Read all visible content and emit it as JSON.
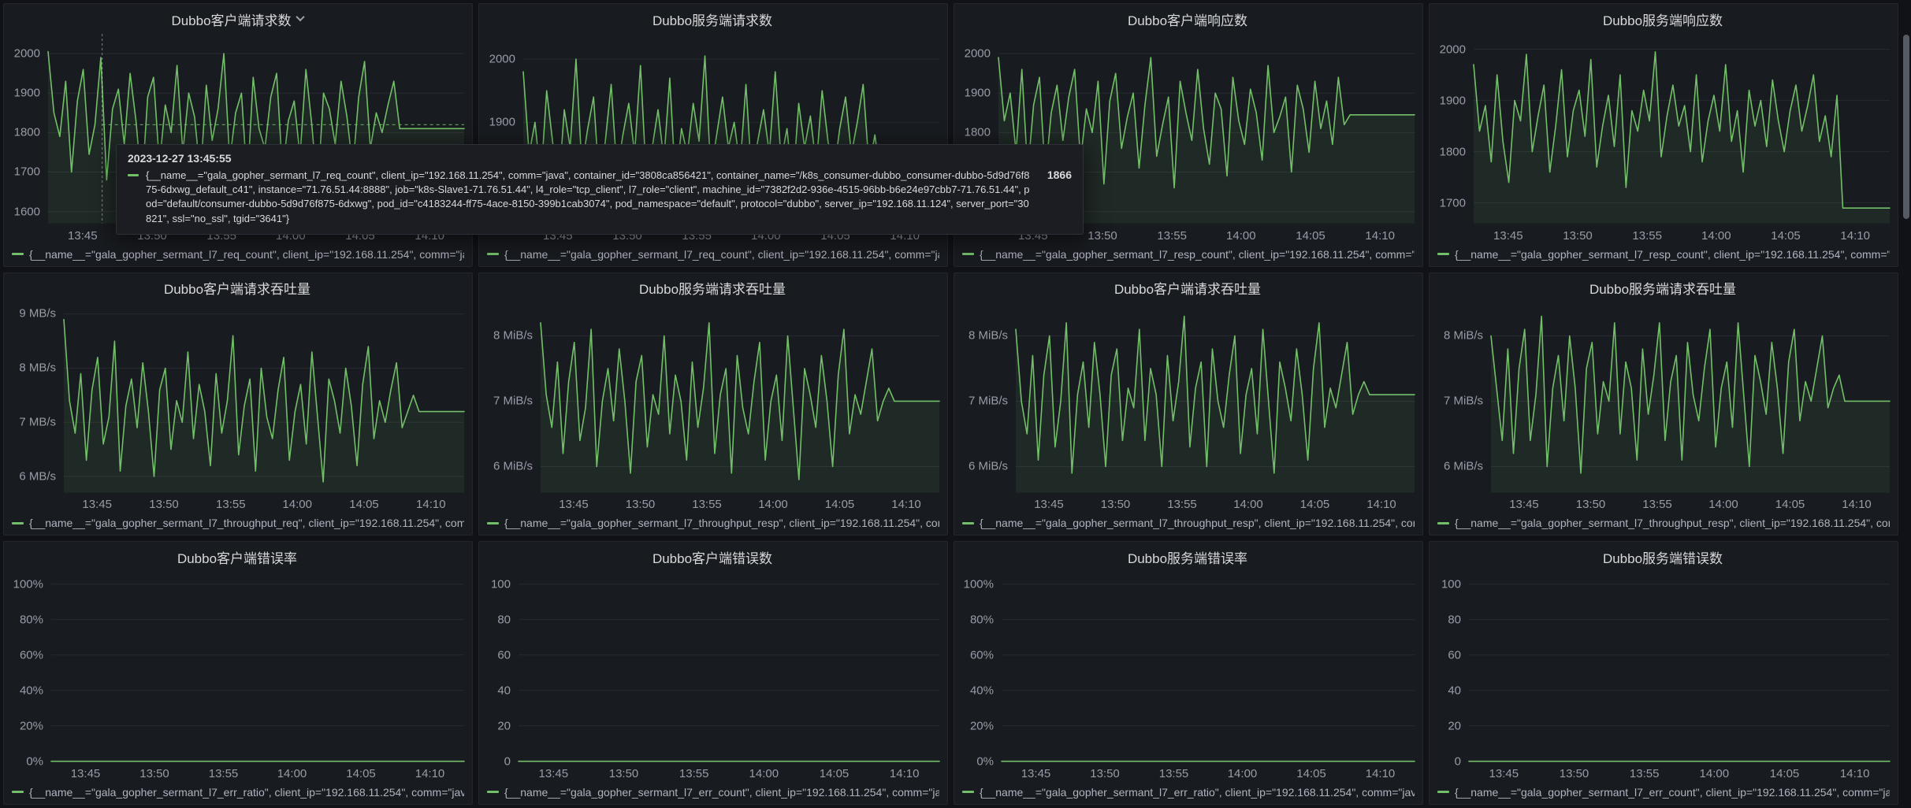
{
  "colors": {
    "series_green": "#73BF69",
    "panel_background": "#181b1f",
    "page_background": "#111217"
  },
  "x_axis": {
    "labels": [
      "13:45",
      "13:50",
      "13:55",
      "14:00",
      "14:05",
      "14:10"
    ],
    "fractions": [
      0.083,
      0.25,
      0.417,
      0.583,
      0.75,
      0.917
    ]
  },
  "tooltip": {
    "time": "2023-12-27 13:45:55",
    "label": "{__name__=\"gala_gopher_sermant_l7_req_count\", client_ip=\"192.168.11.254\", comm=\"java\", container_id=\"3808ca856421\", container_name=\"/k8s_consumer-dubbo_consumer-dubbo-5d9d76f875-6dxwg_default_c41\", instance=\"71.76.51.44:8888\", job=\"k8s-Slave1-71.76.51.44\", l4_role=\"tcp_client\", l7_role=\"client\", machine_id=\"7382f2d2-936e-4515-96bb-b6e24e97cbb7-71.76.51.44\", pod=\"default/consumer-dubbo-5d9d76f875-6dxwg\", pod_id=\"c4183244-ff75-4ace-8150-399b1cab3074\", pod_namespace=\"default\", protocol=\"dubbo\", server_ip=\"192.168.11.124\", server_port=\"30821\", ssl=\"no_ssl\", tgid=\"3641\"}",
    "value": "1866"
  },
  "chart_data": [
    {
      "type": "line",
      "title": "Dubbo客户端请求数",
      "menu_chevron": true,
      "axis_width": 48,
      "y_min": 1570,
      "y_max": 2050,
      "y_ticks": [
        {
          "value": 1600,
          "label": "1600"
        },
        {
          "value": 1700,
          "label": "1700"
        },
        {
          "value": 1800,
          "label": "1800"
        },
        {
          "value": 1900,
          "label": "1900"
        },
        {
          "value": 2000,
          "label": "2000"
        }
      ],
      "legend": "{__name__=\"gala_gopher_sermant_l7_req_count\", client_ip=\"192.168.11.254\", comm=\"java\", containe",
      "crosshair": {
        "x_frac": 0.13,
        "y_value": 1820
      },
      "values": [
        2005,
        1850,
        1790,
        1930,
        1700,
        1880,
        1960,
        1745,
        1820,
        1990,
        1680,
        1860,
        1910,
        1770,
        1950,
        1830,
        1660,
        1890,
        1940,
        1720,
        1870,
        1800,
        1970,
        1750,
        1900,
        1840,
        1690,
        1920,
        1780,
        1860,
        2000,
        1730,
        1850,
        1900,
        1670,
        1940,
        1810,
        1760,
        1890,
        1950,
        1700,
        1830,
        1880,
        1740,
        1960,
        1820,
        1650,
        1900,
        1860,
        1770,
        1930,
        1840,
        1710,
        1890,
        1980,
        1760,
        1850,
        1800,
        1870,
        1930,
        1810,
        1810,
        1810,
        1810,
        1810,
        1810,
        1810,
        1810,
        1810,
        1810,
        1810,
        1810
      ]
    },
    {
      "type": "line",
      "title": "Dubbo服务端请求数",
      "menu_chevron": false,
      "axis_width": 48,
      "y_min": 1740,
      "y_max": 2040,
      "y_ticks": [
        {
          "value": 1800,
          "label": "1800"
        },
        {
          "value": 1900,
          "label": "1900"
        },
        {
          "value": 2000,
          "label": "2000"
        }
      ],
      "legend": "{__name__=\"gala_gopher_sermant_l7_req_count\", client_ip=\"192.168.11.254\", comm=\"java\", containe",
      "values": [
        1980,
        1850,
        1900,
        1810,
        1950,
        1870,
        1790,
        1920,
        1860,
        2000,
        1830,
        1890,
        1940,
        1800,
        1870,
        1960,
        1820,
        1880,
        1930,
        1850,
        1990,
        1810,
        1860,
        1920,
        1840,
        1970,
        1800,
        1890,
        1850,
        1930,
        1870,
        2005,
        1820,
        1880,
        1940,
        1860,
        1900,
        1830,
        1960,
        1810,
        1870,
        1920,
        1850,
        1980,
        1840,
        1890,
        1800,
        1930,
        1860,
        1910,
        1830,
        1950,
        1870,
        1820,
        1890,
        1940,
        1850,
        1900,
        1960,
        1830,
        1880,
        1810,
        1765,
        1765,
        1765,
        1765,
        1765,
        1765,
        1765,
        1765,
        1765,
        1765
      ]
    },
    {
      "type": "line",
      "title": "Dubbo客户端响应数",
      "menu_chevron": false,
      "axis_width": 48,
      "y_min": 1570,
      "y_max": 2050,
      "y_ticks": [
        {
          "value": 1600,
          "label": "1600"
        },
        {
          "value": 1700,
          "label": "1700"
        },
        {
          "value": 1800,
          "label": "1800"
        },
        {
          "value": 1900,
          "label": "1900"
        },
        {
          "value": 2000,
          "label": "2000"
        }
      ],
      "legend": "{__name__=\"gala_gopher_sermant_l7_resp_count\", client_ip=\"192.168.11.254\", comm=\"java\", contain",
      "values": [
        1990,
        1830,
        1900,
        1750,
        1960,
        1700,
        1870,
        1940,
        1690,
        1850,
        1920,
        1780,
        1890,
        1960,
        1730,
        1860,
        1800,
        1930,
        1670,
        1880,
        1950,
        1760,
        1840,
        1900,
        1710,
        1870,
        1990,
        1740,
        1820,
        1890,
        1660,
        1930,
        1850,
        1780,
        1960,
        1810,
        1720,
        1900,
        1860,
        1690,
        1940,
        1830,
        1770,
        1910,
        1850,
        1730,
        1970,
        1800,
        1840,
        1890,
        1700,
        1920,
        1860,
        1750,
        1930,
        1810,
        1880,
        1770,
        1940,
        1820,
        1845,
        1845,
        1845,
        1845,
        1845,
        1845,
        1845,
        1845,
        1845,
        1845,
        1845,
        1845
      ]
    },
    {
      "type": "line",
      "title": "Dubbo服务端响应数",
      "menu_chevron": false,
      "axis_width": 48,
      "y_min": 1660,
      "y_max": 2030,
      "y_ticks": [
        {
          "value": 1700,
          "label": "1700"
        },
        {
          "value": 1800,
          "label": "1800"
        },
        {
          "value": 1900,
          "label": "1900"
        },
        {
          "value": 2000,
          "label": "2000"
        }
      ],
      "legend": "{__name__=\"gala_gopher_sermant_l7_resp_count\", client_ip=\"192.168.11.254\", comm=\"java\", contain",
      "values": [
        1970,
        1840,
        1890,
        1780,
        1950,
        1820,
        1740,
        1900,
        1860,
        1990,
        1800,
        1870,
        1930,
        1760,
        1850,
        1960,
        1790,
        1880,
        1920,
        1830,
        1980,
        1770,
        1850,
        1910,
        1810,
        1950,
        1730,
        1880,
        1840,
        1920,
        1860,
        1995,
        1790,
        1870,
        1930,
        1850,
        1890,
        1800,
        1950,
        1780,
        1860,
        1910,
        1840,
        1970,
        1820,
        1880,
        1760,
        1920,
        1850,
        1900,
        1810,
        1940,
        1860,
        1800,
        1880,
        1930,
        1840,
        1890,
        1950,
        1820,
        1870,
        1790,
        1910,
        1690,
        1690,
        1690,
        1690,
        1690,
        1690,
        1690,
        1690,
        1690
      ]
    },
    {
      "type": "line",
      "title": "Dubbo客户端请求吞吐量",
      "menu_chevron": false,
      "axis_width": 68,
      "y_min": 5.7,
      "y_max": 9.2,
      "y_ticks": [
        {
          "value": 6,
          "label": "6 MB/s"
        },
        {
          "value": 7,
          "label": "7 MB/s"
        },
        {
          "value": 8,
          "label": "8 MB/s"
        },
        {
          "value": 9,
          "label": "9 MB/s"
        }
      ],
      "legend": "{__name__=\"gala_gopher_sermant_l7_throughput_req\", client_ip=\"192.168.11.254\", comm=\"java\", con",
      "values": [
        8.9,
        7.4,
        6.8,
        7.9,
        6.3,
        7.6,
        8.2,
        6.6,
        7.1,
        8.5,
        6.1,
        7.3,
        7.8,
        6.9,
        8.1,
        7.2,
        6.0,
        7.6,
        8.0,
        6.5,
        7.4,
        7.0,
        8.3,
        6.7,
        7.7,
        7.2,
        6.2,
        7.9,
        6.8,
        7.4,
        8.6,
        6.4,
        7.3,
        7.8,
        6.1,
        8.0,
        7.1,
        6.7,
        7.6,
        8.2,
        6.3,
        7.2,
        7.7,
        6.6,
        8.3,
        7.1,
        5.9,
        7.8,
        7.4,
        6.8,
        8.0,
        7.3,
        6.2,
        7.7,
        8.4,
        6.7,
        7.4,
        7.0,
        7.6,
        8.1,
        6.9,
        7.2,
        7.5,
        7.2,
        7.2,
        7.2,
        7.2,
        7.2,
        7.2,
        7.2,
        7.2,
        7.2
      ]
    },
    {
      "type": "line",
      "title": "Dubbo服务端请求吞吐量",
      "menu_chevron": false,
      "axis_width": 70,
      "y_min": 5.6,
      "y_max": 8.5,
      "y_ticks": [
        {
          "value": 6,
          "label": "6 MiB/s"
        },
        {
          "value": 7,
          "label": "7 MiB/s"
        },
        {
          "value": 8,
          "label": "8 MiB/s"
        }
      ],
      "legend": "{__name__=\"gala_gopher_sermant_l7_throughput_resp\", client_ip=\"192.168.11.254\", comm=\"java\", co",
      "values": [
        8.2,
        7.1,
        6.6,
        7.6,
        6.2,
        7.3,
        7.9,
        6.4,
        6.9,
        8.1,
        6.0,
        7.0,
        7.5,
        6.7,
        7.8,
        7.0,
        5.9,
        7.3,
        7.7,
        6.3,
        7.1,
        6.8,
        8.0,
        6.5,
        7.4,
        7.0,
        6.1,
        7.6,
        6.6,
        7.2,
        8.2,
        6.2,
        7.1,
        7.5,
        5.9,
        7.7,
        6.9,
        6.5,
        7.3,
        7.9,
        6.1,
        7.0,
        7.4,
        6.4,
        8.0,
        6.9,
        5.8,
        7.5,
        7.1,
        6.6,
        7.7,
        7.0,
        6.0,
        7.4,
        8.1,
        6.5,
        7.1,
        6.8,
        7.3,
        7.8,
        6.7,
        7.0,
        7.2,
        7.0,
        7.0,
        7.0,
        7.0,
        7.0,
        7.0,
        7.0,
        7.0,
        7.0
      ]
    },
    {
      "type": "line",
      "title": "Dubbo客户端请求吞吐量",
      "menu_chevron": false,
      "axis_width": 70,
      "y_min": 5.6,
      "y_max": 8.5,
      "y_ticks": [
        {
          "value": 6,
          "label": "6 MiB/s"
        },
        {
          "value": 7,
          "label": "7 MiB/s"
        },
        {
          "value": 8,
          "label": "8 MiB/s"
        }
      ],
      "legend": "{__name__=\"gala_gopher_sermant_l7_throughput_resp\", client_ip=\"192.168.11.254\", comm=\"java\", co",
      "values": [
        8.1,
        7.0,
        6.5,
        7.7,
        6.1,
        7.4,
        8.0,
        6.3,
        7.0,
        8.2,
        5.9,
        7.1,
        7.6,
        6.6,
        7.9,
        7.1,
        6.0,
        7.4,
        7.8,
        6.4,
        7.2,
        6.9,
        8.1,
        6.4,
        7.5,
        7.1,
        6.0,
        7.7,
        6.7,
        7.3,
        8.3,
        6.3,
        7.2,
        7.6,
        6.0,
        7.8,
        7.0,
        6.6,
        7.4,
        8.0,
        6.2,
        7.1,
        7.5,
        6.5,
        8.1,
        7.0,
        5.9,
        7.6,
        7.2,
        6.7,
        7.8,
        7.1,
        6.1,
        7.5,
        8.2,
        6.6,
        7.2,
        6.9,
        7.4,
        7.9,
        6.8,
        7.1,
        7.3,
        7.1,
        7.1,
        7.1,
        7.1,
        7.1,
        7.1,
        7.1,
        7.1,
        7.1
      ]
    },
    {
      "type": "line",
      "title": "Dubbo服务端请求吞吐量",
      "menu_chevron": false,
      "axis_width": 70,
      "y_min": 5.6,
      "y_max": 8.5,
      "y_ticks": [
        {
          "value": 6,
          "label": "6 MiB/s"
        },
        {
          "value": 7,
          "label": "7 MiB/s"
        },
        {
          "value": 8,
          "label": "8 MiB/s"
        }
      ],
      "legend": "{__name__=\"gala_gopher_sermant_l7_throughput_resp\", client_ip=\"192.168.11.254\", comm=\"java\", co",
      "values": [
        8.0,
        7.2,
        6.4,
        7.8,
        6.2,
        7.5,
        8.1,
        6.4,
        7.1,
        8.3,
        6.0,
        7.2,
        7.7,
        6.7,
        8.0,
        7.2,
        5.9,
        7.5,
        7.9,
        6.5,
        7.3,
        7.0,
        8.2,
        6.5,
        7.6,
        7.2,
        6.1,
        7.8,
        6.8,
        7.4,
        8.2,
        6.4,
        7.3,
        7.7,
        6.1,
        7.9,
        7.1,
        6.7,
        7.5,
        8.1,
        6.3,
        7.2,
        7.6,
        6.6,
        8.2,
        7.1,
        6.0,
        7.7,
        7.3,
        6.8,
        7.9,
        7.2,
        6.2,
        7.6,
        8.1,
        6.7,
        7.3,
        7.0,
        7.5,
        8.0,
        6.9,
        7.2,
        7.4,
        7.0,
        7.0,
        7.0,
        7.0,
        7.0,
        7.0,
        7.0,
        7.0,
        7.0
      ]
    },
    {
      "type": "line",
      "title": "Dubbo客户端错误率",
      "menu_chevron": false,
      "axis_width": 52,
      "y_min": 0,
      "y_max": 107,
      "y_ticks": [
        {
          "value": 0,
          "label": "0%"
        },
        {
          "value": 20,
          "label": "20%"
        },
        {
          "value": 40,
          "label": "40%"
        },
        {
          "value": 60,
          "label": "60%"
        },
        {
          "value": 80,
          "label": "80%"
        },
        {
          "value": 100,
          "label": "100%"
        }
      ],
      "legend": "{__name__=\"gala_gopher_sermant_l7_err_ratio\", client_ip=\"192.168.11.254\", comm=\"java\", container_",
      "values": [
        0,
        0
      ]
    },
    {
      "type": "line",
      "title": "Dubbo客户端错误数",
      "menu_chevron": false,
      "axis_width": 42,
      "y_min": 0,
      "y_max": 107,
      "y_ticks": [
        {
          "value": 0,
          "label": "0"
        },
        {
          "value": 20,
          "label": "20"
        },
        {
          "value": 40,
          "label": "40"
        },
        {
          "value": 60,
          "label": "60"
        },
        {
          "value": 80,
          "label": "80"
        },
        {
          "value": 100,
          "label": "100"
        }
      ],
      "legend": "{__name__=\"gala_gopher_sermant_l7_err_count\", client_ip=\"192.168.11.254\", comm=\"java\", container",
      "values": [
        0,
        0
      ]
    },
    {
      "type": "line",
      "title": "Dubbo服务端错误率",
      "menu_chevron": false,
      "axis_width": 52,
      "y_min": 0,
      "y_max": 107,
      "y_ticks": [
        {
          "value": 0,
          "label": "0%"
        },
        {
          "value": 20,
          "label": "20%"
        },
        {
          "value": 40,
          "label": "40%"
        },
        {
          "value": 60,
          "label": "60%"
        },
        {
          "value": 80,
          "label": "80%"
        },
        {
          "value": 100,
          "label": "100%"
        }
      ],
      "legend": "{__name__=\"gala_gopher_sermant_l7_err_ratio\", client_ip=\"192.168.11.254\", comm=\"java\", container_",
      "values": [
        0,
        0
      ]
    },
    {
      "type": "line",
      "title": "Dubbo服务端错误数",
      "menu_chevron": false,
      "axis_width": 42,
      "y_min": 0,
      "y_max": 107,
      "y_ticks": [
        {
          "value": 0,
          "label": "0"
        },
        {
          "value": 20,
          "label": "20"
        },
        {
          "value": 40,
          "label": "40"
        },
        {
          "value": 60,
          "label": "60"
        },
        {
          "value": 80,
          "label": "80"
        },
        {
          "value": 100,
          "label": "100"
        }
      ],
      "legend": "{__name__=\"gala_gopher_sermant_l7_err_count\", client_ip=\"192.168.11.254\", comm=\"java\", container",
      "values": [
        0,
        0
      ]
    }
  ]
}
